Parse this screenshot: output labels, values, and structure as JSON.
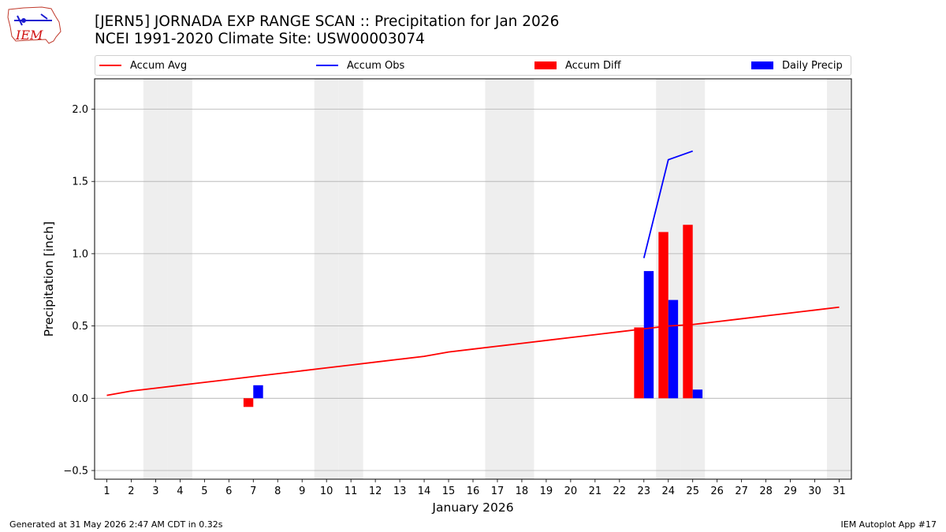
{
  "title": {
    "line1": "[JERN5] JORNADA EXP RANGE SCAN :: Precipitation for Jan 2026",
    "line2": "NCEI 1991-2020 Climate Site: USW00003074"
  },
  "logo": {
    "text": "IEM"
  },
  "footer": {
    "generated": "Generated at 31 May 2026 2:47 AM CDT in 0.32s",
    "app": "IEM Autoplot App #17"
  },
  "legend": {
    "accum_avg": "Accum Avg",
    "accum_obs": "Accum Obs",
    "accum_diff": "Accum Diff",
    "daily_precip": "Daily Precip"
  },
  "colors": {
    "accum_avg": "#ff0000",
    "accum_obs": "#0000ff",
    "accum_diff": "#ff0000",
    "daily_precip": "#0000ff",
    "weekend_shade": "#eeeeee",
    "grid": "#b0b0b0"
  },
  "chart_data": {
    "type": "bar",
    "xlabel": "January 2026",
    "ylabel": "Precipitation [inch]",
    "xlim": [
      0.5,
      31.5
    ],
    "ylim": [
      -0.56,
      2.21
    ],
    "yticks": [
      -0.5,
      0.0,
      0.5,
      1.0,
      1.5,
      2.0
    ],
    "ytick_labels": [
      "−0.5",
      "0.0",
      "0.5",
      "1.0",
      "1.5",
      "2.0"
    ],
    "days": [
      1,
      2,
      3,
      4,
      5,
      6,
      7,
      8,
      9,
      10,
      11,
      12,
      13,
      14,
      15,
      16,
      17,
      18,
      19,
      20,
      21,
      22,
      23,
      24,
      25,
      26,
      27,
      28,
      29,
      30,
      31
    ],
    "weekend_days": [
      3,
      4,
      10,
      11,
      17,
      18,
      24,
      25,
      31
    ],
    "grid": "horizontal",
    "legend_position": "top",
    "series": [
      {
        "name": "Accum Avg",
        "type": "line",
        "x": [
          1,
          2,
          3,
          4,
          5,
          6,
          7,
          8,
          9,
          10,
          11,
          12,
          13,
          14,
          15,
          16,
          17,
          18,
          19,
          20,
          21,
          22,
          23,
          24,
          25,
          26,
          27,
          28,
          29,
          30,
          31
        ],
        "values": [
          0.02,
          0.05,
          0.07,
          0.09,
          0.11,
          0.13,
          0.15,
          0.17,
          0.19,
          0.21,
          0.23,
          0.25,
          0.27,
          0.29,
          0.32,
          0.34,
          0.36,
          0.38,
          0.4,
          0.42,
          0.44,
          0.46,
          0.48,
          0.5,
          0.51,
          0.53,
          0.55,
          0.57,
          0.59,
          0.61,
          0.63
        ]
      },
      {
        "name": "Accum Obs",
        "type": "line",
        "x": [
          23,
          24,
          25
        ],
        "values": [
          0.97,
          1.65,
          1.71
        ]
      },
      {
        "name": "Accum Diff",
        "type": "bar",
        "x": [
          7,
          23,
          24,
          25
        ],
        "values": [
          -0.06,
          0.49,
          1.15,
          1.2
        ]
      },
      {
        "name": "Daily Precip",
        "type": "bar",
        "x": [
          7,
          23,
          24,
          25
        ],
        "values": [
          0.09,
          0.88,
          0.68,
          0.06
        ]
      }
    ]
  }
}
